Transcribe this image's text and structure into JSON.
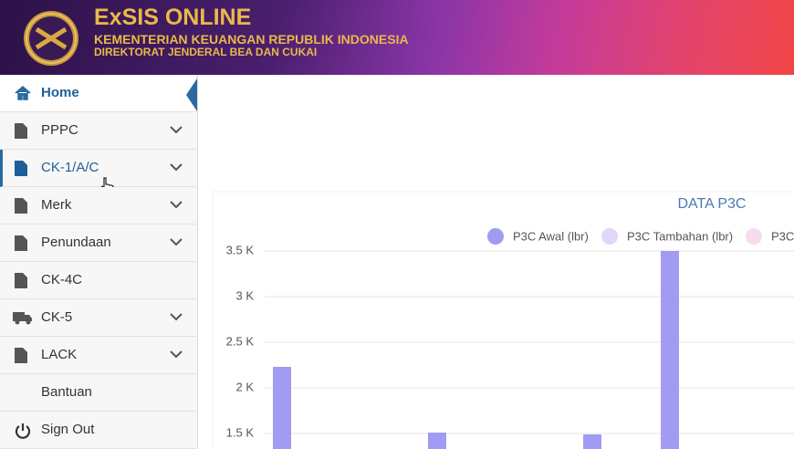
{
  "header": {
    "title": "ExSIS ONLINE",
    "subtitle": "KEMENTERIAN KEUANGAN REPUBLIK INDONESIA",
    "subtitle2": "DIREKTORAT JENDERAL BEA DAN CUKAI"
  },
  "menu": [
    {
      "label": "Home"
    },
    {
      "label": "PPPC"
    },
    {
      "label": "CK-1/A/C"
    },
    {
      "label": "Merk"
    },
    {
      "label": "Penundaan"
    },
    {
      "label": "CK-4C"
    },
    {
      "label": "CK-5"
    },
    {
      "label": "LACK"
    },
    {
      "label": "Bantuan"
    },
    {
      "label": "Sign Out"
    }
  ],
  "chart_data": {
    "type": "bar",
    "title": "DATA P3C",
    "categories": [
      null,
      null,
      null,
      null,
      null,
      null,
      null
    ],
    "series": [
      {
        "name": "P3C Awal (lbr)",
        "color": "#a29bf3",
        "values": [
          2230,
          null,
          1510,
          null,
          1490,
          3500,
          null
        ]
      },
      {
        "name": "P3C Tambahan (lbr)",
        "color": "#e2d6f8",
        "values": [
          null,
          null,
          null,
          null,
          null,
          null,
          null
        ]
      },
      {
        "name": "P3C",
        "color": "#f7dced",
        "values": [
          null,
          null,
          null,
          null,
          null,
          null,
          null
        ]
      }
    ],
    "ylim": [
      1330,
      3630
    ],
    "yticks": [
      {
        "value": 1500,
        "label": "1.5 K"
      },
      {
        "value": 2000,
        "label": "2 K"
      },
      {
        "value": 2500,
        "label": "2.5 K"
      },
      {
        "value": 3000,
        "label": "3 K"
      },
      {
        "value": 3500,
        "label": "3.5 K"
      }
    ],
    "grid": true
  }
}
